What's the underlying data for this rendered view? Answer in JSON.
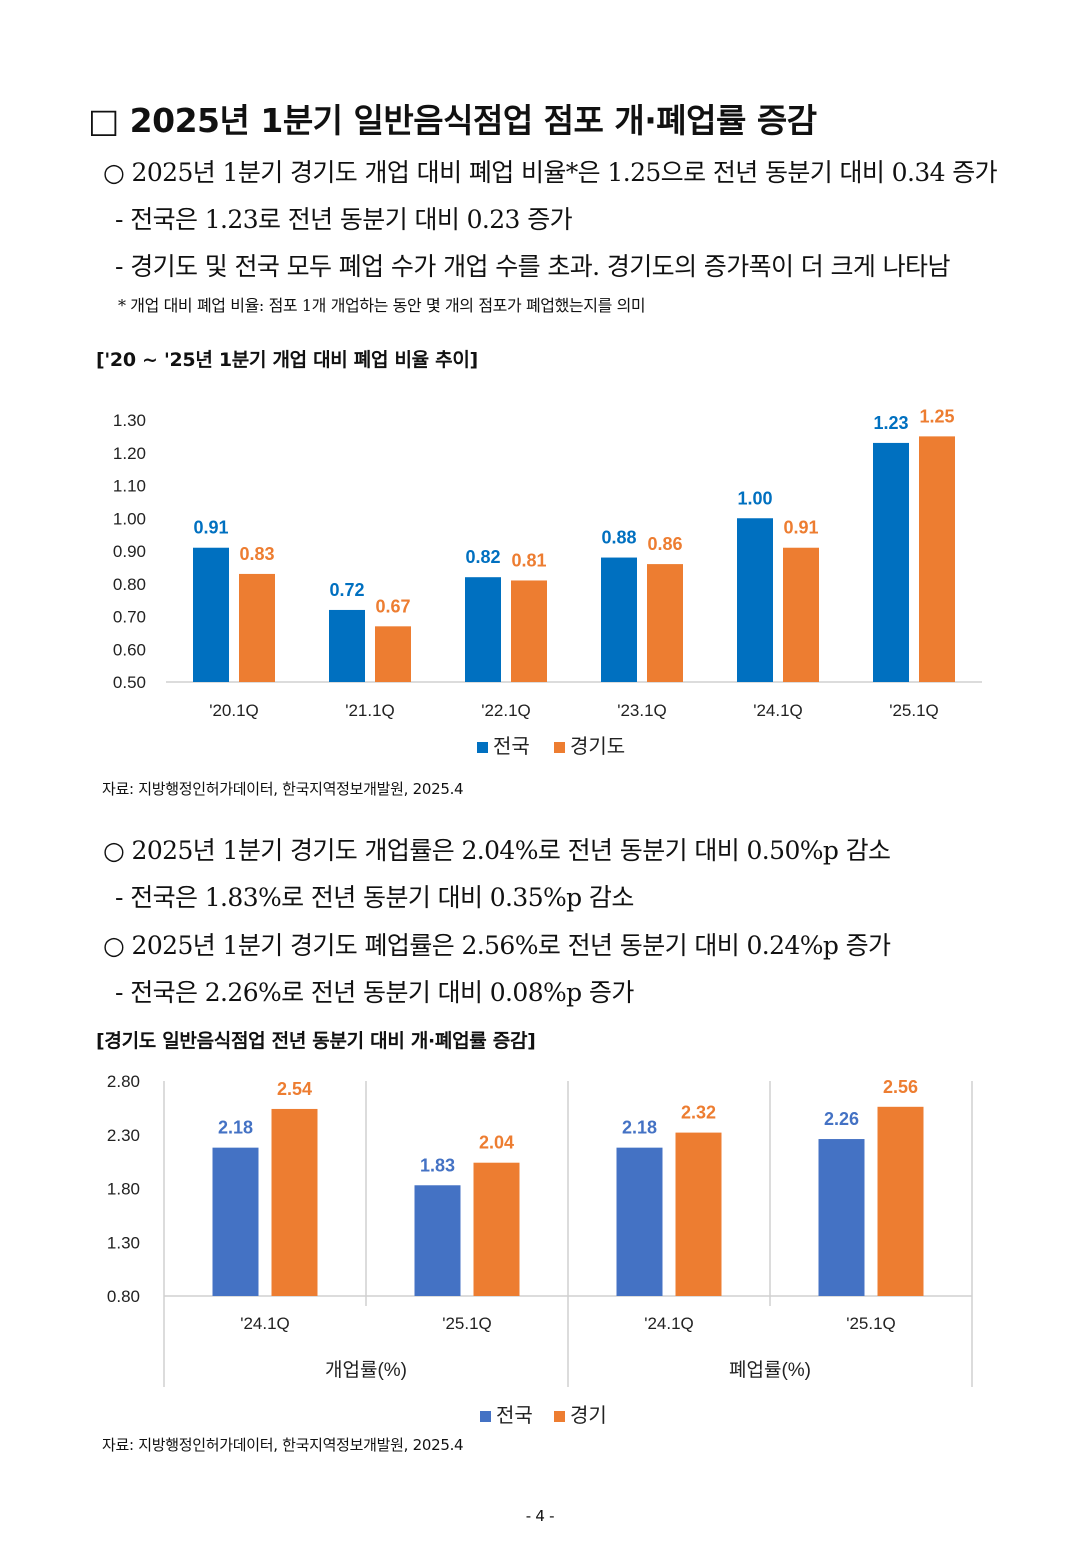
{
  "heading": "□ 2025년 1분기 일반음식점업 점포 개·폐업률 증감",
  "para1": {
    "line1": "○ 2025년 1분기 경기도 개업 대비 폐업 비율*은 1.25으로 전년 동분기 대비 0.34 증가",
    "line2": "- 전국은  1.23로 전년 동분기 대비 0.23 증가",
    "line3": "- 경기도 및 전국 모두 폐업 수가 개업 수를 초과. 경기도의 증가폭이 더 크게 나타남",
    "footnote": "* 개업 대비 폐업 비율: 점포 1개 개업하는 동안 몇 개의 점포가 폐업했는지를 의미"
  },
  "chart1_title": "['20 ~ '25년 1분기 개업 대비 폐업 비율 추이]",
  "source1": "자료: 지방행정인허가데이터, 한국지역정보개발원, 2025.4",
  "para2": {
    "line1": "○ 2025년 1분기 경기도 개업률은 2.04%로 전년 동분기 대비 0.50%p 감소",
    "line2": "- 전국은  1.83%로 전년 동분기 대비 0.35%p  감소",
    "line3": "○ 2025년 1분기 경기도 폐업률은 2.56%로 전년 동분기 대비 0.24%p 증가",
    "line4": "- 전국은  2.26%로 전년 동분기 대비 0.08%p  증가"
  },
  "chart2_title": "[경기도 일반음식점업 전년 동분기 대비 개·폐업률 증감]",
  "source2": "자료: 지방행정인허가데이터, 한국지역정보개발원, 2025.4",
  "page_number": "- 4 -",
  "colors": {
    "blue1": "#0070C0",
    "orange": "#ED7D31",
    "blue2": "#4472C4",
    "grid": "#d9d9d9"
  },
  "chart_data": [
    {
      "type": "bar",
      "categories": [
        "'20.1Q",
        "'21.1Q",
        "'22.1Q",
        "'23.1Q",
        "'24.1Q",
        "'25.1Q"
      ],
      "series": [
        {
          "name": "전국",
          "values": [
            0.91,
            0.72,
            0.82,
            0.88,
            1.0,
            1.23
          ],
          "labels": [
            "0.91",
            "0.72",
            "0.82",
            "0.88",
            "1.00",
            "1.23"
          ]
        },
        {
          "name": "경기도",
          "values": [
            0.83,
            0.67,
            0.81,
            0.86,
            0.91,
            1.25
          ],
          "labels": [
            "0.83",
            "0.67",
            "0.81",
            "0.86",
            "0.91",
            "1.25"
          ]
        }
      ],
      "ylim": [
        0.5,
        1.3
      ],
      "yticks": [
        "0.50",
        "0.60",
        "0.70",
        "0.80",
        "0.90",
        "1.00",
        "1.10",
        "1.20",
        "1.30"
      ],
      "grid": false,
      "legend": "bottom"
    },
    {
      "type": "bar",
      "categories": [
        "'24.1Q",
        "'25.1Q",
        "'24.1Q",
        "'25.1Q"
      ],
      "groups": [
        "개업률(%)",
        "폐업률(%)"
      ],
      "series": [
        {
          "name": "전국",
          "values": [
            2.18,
            1.83,
            2.18,
            2.26
          ],
          "labels": [
            "2.18",
            "1.83",
            "2.18",
            "2.26"
          ]
        },
        {
          "name": "경기",
          "values": [
            2.54,
            2.04,
            2.32,
            2.56
          ],
          "labels": [
            "2.54",
            "2.04",
            "2.32",
            "2.56"
          ]
        }
      ],
      "ylim": [
        0.8,
        2.8
      ],
      "yticks": [
        "0.80",
        "1.30",
        "1.80",
        "2.30",
        "2.80"
      ],
      "grid": false,
      "legend": "bottom"
    }
  ]
}
